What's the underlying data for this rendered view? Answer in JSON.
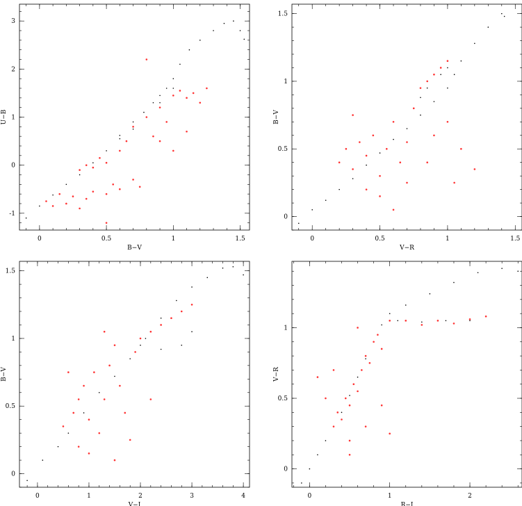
{
  "chart_data": [
    {
      "type": "scatter",
      "title": "",
      "xlabel": "B−V",
      "ylabel": "U−B",
      "xlim": [
        -0.15,
        1.57
      ],
      "ylim": [
        -1.35,
        3.35
      ],
      "xticks": [
        0,
        0.5,
        1,
        1.5
      ],
      "xtick_labels": [
        "0",
        "0.5",
        "1",
        "1.5"
      ],
      "yticks": [
        -1,
        0,
        1,
        2,
        3
      ],
      "ytick_labels": [
        "-1",
        "0",
        "1",
        "2",
        "3"
      ],
      "grid": false,
      "series": [
        {
          "color": "#000000",
          "marker": "dot",
          "points": [
            [
              -0.1,
              -1.1
            ],
            [
              0,
              -0.85
            ],
            [
              0.1,
              -0.62
            ],
            [
              0.2,
              -0.4
            ],
            [
              0.3,
              -0.2
            ],
            [
              0.4,
              0.05
            ],
            [
              0.5,
              0.3
            ],
            [
              0.6,
              0.62
            ],
            [
              0.7,
              0.9
            ],
            [
              0.78,
              1.1
            ],
            [
              0.85,
              1.3
            ],
            [
              0.9,
              1.45
            ],
            [
              0.95,
              1.6
            ],
            [
              1.0,
              1.8
            ],
            [
              1.05,
              2.1
            ],
            [
              1.12,
              2.4
            ],
            [
              1.2,
              2.6
            ],
            [
              1.3,
              2.8
            ],
            [
              1.38,
              2.95
            ],
            [
              1.45,
              3.0
            ],
            [
              1.5,
              2.8
            ],
            [
              1.53,
              2.62
            ],
            [
              0.6,
              0.55
            ],
            [
              0.7,
              0.75
            ],
            [
              0.8,
              1.0
            ],
            [
              0.9,
              1.3
            ],
            [
              1.0,
              1.6
            ]
          ]
        },
        {
          "color": "#ff3333",
          "marker": "dot",
          "points": [
            [
              0.05,
              -0.75
            ],
            [
              0.1,
              -0.85
            ],
            [
              0.15,
              -0.6
            ],
            [
              0.2,
              -0.8
            ],
            [
              0.25,
              -0.65
            ],
            [
              0.3,
              -0.9
            ],
            [
              0.35,
              -0.7
            ],
            [
              0.4,
              -0.55
            ],
            [
              0.5,
              -0.6
            ],
            [
              0.55,
              -0.4
            ],
            [
              0.6,
              -0.5
            ],
            [
              0.7,
              -0.3
            ],
            [
              0.75,
              -0.45
            ],
            [
              0.3,
              -0.1
            ],
            [
              0.35,
              0.0
            ],
            [
              0.4,
              -0.05
            ],
            [
              0.45,
              0.15
            ],
            [
              0.5,
              0.05
            ],
            [
              0.6,
              0.3
            ],
            [
              0.65,
              0.5
            ],
            [
              0.7,
              0.8
            ],
            [
              0.8,
              1.0
            ],
            [
              0.9,
              1.2
            ],
            [
              1.0,
              1.45
            ],
            [
              1.05,
              1.55
            ],
            [
              1.1,
              1.4
            ],
            [
              1.15,
              1.5
            ],
            [
              1.2,
              1.3
            ],
            [
              1.25,
              1.6
            ],
            [
              0.85,
              0.6
            ],
            [
              0.95,
              0.9
            ],
            [
              1.1,
              0.7
            ],
            [
              1.0,
              0.3
            ],
            [
              0.9,
              0.5
            ],
            [
              0.8,
              2.2
            ],
            [
              0.5,
              -1.2
            ]
          ]
        }
      ]
    },
    {
      "type": "scatter",
      "title": "",
      "xlabel": "V−R",
      "ylabel": "B−V",
      "xlim": [
        -0.15,
        1.55
      ],
      "ylim": [
        -0.1,
        1.57
      ],
      "xticks": [
        0,
        0.5,
        1,
        1.5
      ],
      "xtick_labels": [
        "0",
        "0.5",
        "1",
        "1.5"
      ],
      "yticks": [
        0,
        0.5,
        1,
        1.5
      ],
      "ytick_labels": [
        "0",
        "0.5",
        "1",
        "1.5"
      ],
      "grid": false,
      "series": [
        {
          "color": "#000000",
          "marker": "dot",
          "points": [
            [
              -0.1,
              -0.05
            ],
            [
              0,
              0.05
            ],
            [
              0.1,
              0.12
            ],
            [
              0.2,
              0.2
            ],
            [
              0.3,
              0.28
            ],
            [
              0.4,
              0.38
            ],
            [
              0.5,
              0.47
            ],
            [
              0.6,
              0.57
            ],
            [
              0.7,
              0.65
            ],
            [
              0.8,
              0.75
            ],
            [
              0.9,
              0.85
            ],
            [
              1.0,
              0.95
            ],
            [
              1.05,
              1.05
            ],
            [
              1.1,
              1.15
            ],
            [
              1.2,
              1.28
            ],
            [
              1.3,
              1.4
            ],
            [
              1.4,
              1.5
            ],
            [
              1.42,
              1.48
            ],
            [
              0.8,
              0.88
            ],
            [
              0.85,
              0.95
            ],
            [
              0.95,
              1.05
            ],
            [
              1.0,
              1.1
            ]
          ]
        },
        {
          "color": "#ff3333",
          "marker": "dot",
          "points": [
            [
              0.2,
              0.4
            ],
            [
              0.25,
              0.5
            ],
            [
              0.3,
              0.35
            ],
            [
              0.35,
              0.55
            ],
            [
              0.4,
              0.45
            ],
            [
              0.45,
              0.6
            ],
            [
              0.5,
              0.3
            ],
            [
              0.55,
              0.5
            ],
            [
              0.6,
              0.7
            ],
            [
              0.65,
              0.4
            ],
            [
              0.7,
              0.55
            ],
            [
              0.75,
              0.8
            ],
            [
              0.8,
              0.95
            ],
            [
              0.85,
              1.0
            ],
            [
              0.9,
              1.05
            ],
            [
              0.95,
              1.1
            ],
            [
              1.0,
              1.15
            ],
            [
              0.9,
              0.6
            ],
            [
              1.0,
              0.7
            ],
            [
              1.1,
              0.5
            ],
            [
              1.2,
              0.35
            ],
            [
              0.5,
              0.15
            ],
            [
              0.6,
              0.05
            ],
            [
              0.3,
              0.75
            ],
            [
              0.4,
              0.2
            ],
            [
              0.7,
              0.25
            ],
            [
              0.85,
              0.4
            ],
            [
              1.05,
              0.25
            ]
          ]
        }
      ]
    },
    {
      "type": "scatter",
      "title": "",
      "xlabel": "V−I",
      "ylabel": "B−V",
      "xlim": [
        -0.35,
        4.12
      ],
      "ylim": [
        -0.1,
        1.57
      ],
      "xticks": [
        0,
        1,
        2,
        3,
        4
      ],
      "xtick_labels": [
        "0",
        "1",
        "2",
        "3",
        "4"
      ],
      "yticks": [
        0,
        0.5,
        1,
        1.5
      ],
      "ytick_labels": [
        "0",
        "0.5",
        "1",
        "1.5"
      ],
      "grid": false,
      "series": [
        {
          "color": "#000000",
          "marker": "dot",
          "points": [
            [
              -0.2,
              -0.05
            ],
            [
              0.1,
              0.1
            ],
            [
              0.4,
              0.2
            ],
            [
              0.6,
              0.3
            ],
            [
              0.9,
              0.45
            ],
            [
              1.2,
              0.6
            ],
            [
              1.5,
              0.72
            ],
            [
              1.8,
              0.85
            ],
            [
              2.1,
              1.0
            ],
            [
              2.4,
              1.15
            ],
            [
              2.7,
              1.28
            ],
            [
              3.0,
              1.38
            ],
            [
              3.3,
              1.45
            ],
            [
              3.6,
              1.52
            ],
            [
              3.8,
              1.53
            ],
            [
              4.0,
              1.47
            ],
            [
              2.0,
              0.95
            ],
            [
              2.4,
              0.92
            ],
            [
              2.8,
              0.95
            ],
            [
              3.0,
              1.05
            ]
          ]
        },
        {
          "color": "#ff3333",
          "marker": "dot",
          "points": [
            [
              0.5,
              0.35
            ],
            [
              0.7,
              0.45
            ],
            [
              0.8,
              0.55
            ],
            [
              0.9,
              0.65
            ],
            [
              1.0,
              0.4
            ],
            [
              1.1,
              0.75
            ],
            [
              1.2,
              0.3
            ],
            [
              1.3,
              0.55
            ],
            [
              1.4,
              0.8
            ],
            [
              1.5,
              0.95
            ],
            [
              1.6,
              0.65
            ],
            [
              1.7,
              0.45
            ],
            [
              1.8,
              0.25
            ],
            [
              1.9,
              0.9
            ],
            [
              2.0,
              1.0
            ],
            [
              2.2,
              1.05
            ],
            [
              2.4,
              1.1
            ],
            [
              2.6,
              1.15
            ],
            [
              2.8,
              1.2
            ],
            [
              3.0,
              1.25
            ],
            [
              0.8,
              0.2
            ],
            [
              1.0,
              0.15
            ],
            [
              1.5,
              0.1
            ],
            [
              2.2,
              0.55
            ],
            [
              0.6,
              0.75
            ],
            [
              1.3,
              1.05
            ]
          ]
        }
      ]
    },
    {
      "type": "scatter",
      "title": "",
      "xlabel": "R−I",
      "ylabel": "V−R",
      "xlim": [
        -0.22,
        2.65
      ],
      "ylim": [
        -0.13,
        1.47
      ],
      "xticks": [
        0,
        1,
        2
      ],
      "xtick_labels": [
        "0",
        "1",
        "2"
      ],
      "yticks": [
        0,
        0.5,
        1
      ],
      "ytick_labels": [
        "0",
        "0.5",
        "1"
      ],
      "grid": false,
      "series": [
        {
          "color": "#000000",
          "marker": "dot",
          "points": [
            [
              -0.1,
              -0.1
            ],
            [
              0.0,
              0.0
            ],
            [
              0.1,
              0.1
            ],
            [
              0.2,
              0.2
            ],
            [
              0.3,
              0.3
            ],
            [
              0.4,
              0.4
            ],
            [
              0.5,
              0.52
            ],
            [
              0.6,
              0.65
            ],
            [
              0.7,
              0.78
            ],
            [
              0.8,
              0.9
            ],
            [
              0.9,
              1.02
            ],
            [
              1.0,
              1.1
            ],
            [
              1.2,
              1.16
            ],
            [
              1.5,
              1.24
            ],
            [
              1.8,
              1.32
            ],
            [
              2.1,
              1.39
            ],
            [
              2.4,
              1.42
            ],
            [
              2.6,
              1.4
            ],
            [
              1.1,
              1.05
            ],
            [
              1.4,
              1.04
            ],
            [
              1.7,
              1.05
            ],
            [
              2.0,
              1.05
            ]
          ]
        },
        {
          "color": "#ff3333",
          "marker": "dot",
          "points": [
            [
              0.3,
              0.3
            ],
            [
              0.35,
              0.4
            ],
            [
              0.4,
              0.35
            ],
            [
              0.45,
              0.5
            ],
            [
              0.5,
              0.45
            ],
            [
              0.55,
              0.6
            ],
            [
              0.6,
              0.55
            ],
            [
              0.65,
              0.7
            ],
            [
              0.7,
              0.8
            ],
            [
              0.75,
              0.75
            ],
            [
              0.8,
              0.9
            ],
            [
              0.85,
              0.95
            ],
            [
              0.9,
              0.85
            ],
            [
              1.0,
              1.05
            ],
            [
              1.2,
              1.05
            ],
            [
              1.4,
              1.02
            ],
            [
              1.6,
              1.05
            ],
            [
              1.8,
              1.03
            ],
            [
              2.0,
              1.06
            ],
            [
              2.2,
              1.08
            ],
            [
              0.2,
              0.5
            ],
            [
              0.3,
              0.7
            ],
            [
              0.5,
              0.2
            ],
            [
              0.7,
              0.3
            ],
            [
              0.9,
              0.45
            ],
            [
              1.0,
              0.25
            ],
            [
              0.1,
              0.65
            ],
            [
              0.6,
              1.0
            ],
            [
              0.5,
              0.1
            ]
          ]
        }
      ]
    }
  ]
}
